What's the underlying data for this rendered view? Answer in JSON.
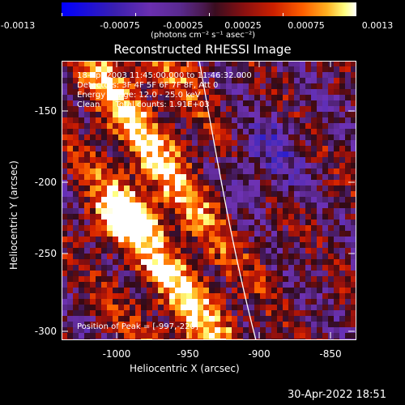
{
  "colorbar": {
    "ticks": [
      "-0.0013",
      "-0.00075",
      "-0.00025",
      "0.00025",
      "0.00075",
      "0.0013"
    ],
    "unit": "(photons cm⁻² s⁻¹ asec⁻²)"
  },
  "title": "Reconstructed RHESSI Image",
  "info": {
    "time": "18-Apr-2003 11:45:00.000 to 11:46:32.000",
    "detectors": "Detectors: 3F 4F 5F 6F 7F 8F, Att 0",
    "energy": "Energy Range: 12.0 - 25.0 keV",
    "clean": "Clean      Total counts: 1.91E+03",
    "peak": "Position of Peak = [-997,-220]"
  },
  "axes": {
    "xlabel": "Heliocentric X (arcsec)",
    "ylabel": "Heliocentric Y (arcsec)",
    "xticks": [
      "-1000",
      "-950",
      "-900",
      "-850"
    ],
    "yticks": [
      "-150",
      "-200",
      "-250",
      "-300"
    ]
  },
  "timestamp": "30-Apr-2022 18:51"
}
